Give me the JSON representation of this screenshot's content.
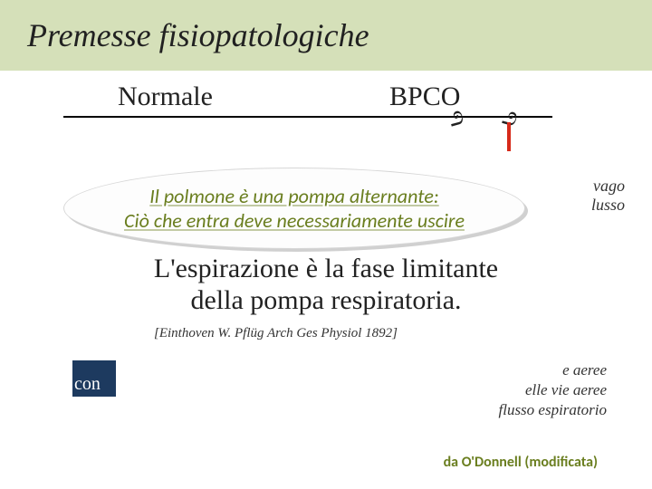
{
  "title": "Premesse fisiopatologiche",
  "headers": {
    "left": "Normale",
    "right": "BPCO"
  },
  "side_text": {
    "line1": "vago",
    "line2": "lusso"
  },
  "bubble": {
    "line1": "Il polmone è una pompa alternante:",
    "line2": "Ciò che entra deve necessariamente uscire"
  },
  "statement": {
    "line1": "L'espirazione è la fase limitante",
    "line2": "della pompa respiratoria."
  },
  "citation": "[Einthoven W. Pflüg Arch Ges Physiol 1892]",
  "blue_fragment": "con",
  "bottom_italic": {
    "l1": "e aeree",
    "l2": "elle vie aeree",
    "l3": "flusso espiratorio"
  },
  "credit": "da O'Donnell (modificata)",
  "colors": {
    "band": "#d5e0b9",
    "olive": "#6a7e1f",
    "navy": "#1d3a5f",
    "red": "#d62a1a"
  }
}
